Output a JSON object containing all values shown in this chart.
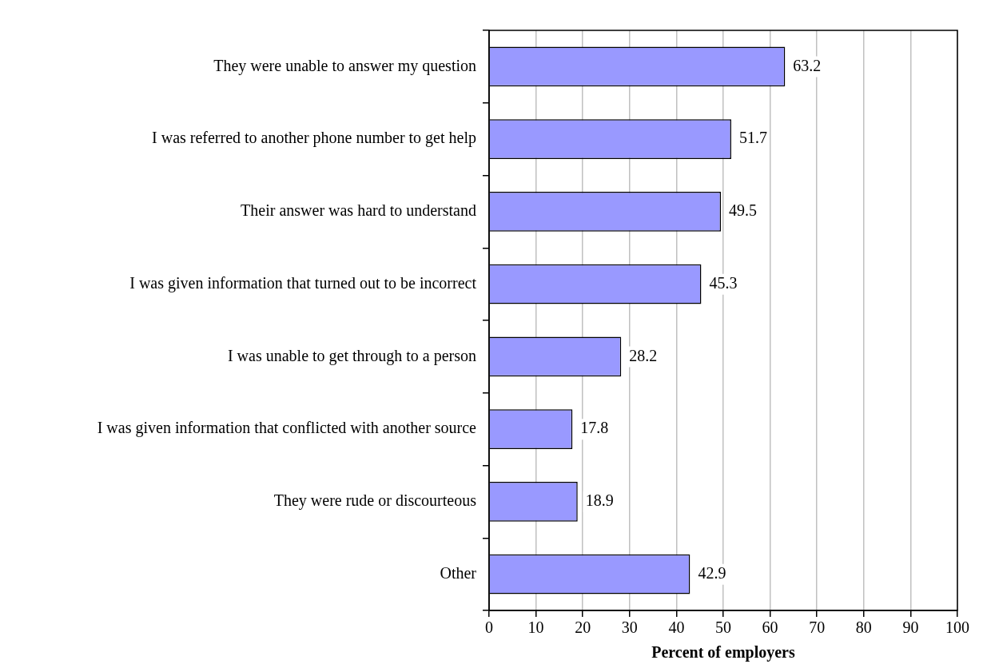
{
  "chart_data": {
    "type": "bar",
    "orientation": "horizontal",
    "xlabel": "Percent of employers",
    "categories": [
      "They were unable to answer my question",
      "I was referred to another phone number to get help",
      "Their answer was hard to understand",
      "I was given information that turned out to be incorrect",
      "I was unable to get through to a person",
      "I was given information that conflicted with another source",
      "They were rude or discourteous",
      "Other"
    ],
    "values": [
      63.2,
      51.7,
      49.5,
      45.3,
      28.2,
      17.8,
      18.9,
      42.9
    ],
    "color": "#9999ff",
    "xlim": [
      0,
      100
    ],
    "xticks": [
      0,
      10,
      20,
      30,
      40,
      50,
      60,
      70,
      80,
      90,
      100
    ],
    "grid": "x",
    "data_labels": true,
    "legend": false
  }
}
